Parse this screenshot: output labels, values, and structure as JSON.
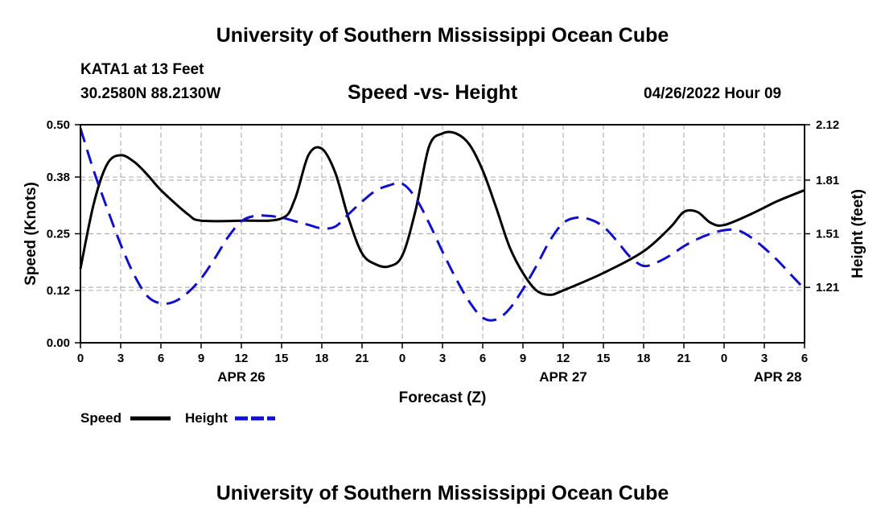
{
  "header": {
    "title": "University of Southern Mississippi Ocean Cube",
    "station": "KATA1 at 13 Feet",
    "coordinates": "30.2580N  88.2130W",
    "chart_title": "Speed -vs- Height",
    "datestamp": "04/26/2022 Hour 09"
  },
  "footer": {
    "title": "University of Southern Mississippi Ocean Cube"
  },
  "colors": {
    "speed": "#000000",
    "height": "#1010cc",
    "grid": "#b4b4b4"
  },
  "chart_data": {
    "type": "line",
    "title": "Speed -vs- Height",
    "xlabel": "Forecast (Z)",
    "ylabel": "Speed (Knots)",
    "y2label": "Height (feet)",
    "x_range": [
      0,
      54
    ],
    "x_tick_values": [
      0,
      3,
      6,
      9,
      12,
      15,
      18,
      21,
      24,
      27,
      30,
      33,
      36,
      39,
      42,
      45,
      48,
      51,
      54
    ],
    "x_tick_labels": [
      "0",
      "3",
      "6",
      "9",
      "12",
      "15",
      "18",
      "21",
      "0",
      "3",
      "6",
      "9",
      "12",
      "15",
      "18",
      "21",
      "0",
      "3",
      "6"
    ],
    "date_labels": [
      {
        "x": 12,
        "label": "APR 26"
      },
      {
        "x": 36,
        "label": "APR 27"
      },
      {
        "x": 52,
        "label": "APR 28"
      }
    ],
    "ylim": [
      0,
      0.5
    ],
    "y_ticks": [
      0.0,
      0.12,
      0.25,
      0.38,
      0.5
    ],
    "y_tick_labels": [
      "0.00",
      "0.12",
      "0.25",
      "0.38",
      "0.50"
    ],
    "y2lim": [
      0.9,
      2.12
    ],
    "y2_ticks": [
      1.21,
      1.51,
      1.81,
      2.12
    ],
    "y2_tick_labels": [
      "1.21",
      "1.51",
      "1.81",
      "2.12"
    ],
    "grid": true,
    "legend_position": "bottom-left",
    "series": [
      {
        "name": "Speed",
        "axis": "left",
        "style": "solid",
        "x": [
          0,
          1,
          2,
          3,
          4,
          5,
          6,
          8,
          9,
          12,
          15,
          16,
          17,
          18,
          19,
          20,
          21,
          22,
          23,
          24,
          25,
          26,
          27,
          28,
          29,
          30,
          31,
          32,
          33,
          34,
          35,
          36,
          39,
          42,
          44,
          45,
          46,
          47,
          48,
          50,
          52,
          54
        ],
        "values": [
          0.17,
          0.32,
          0.41,
          0.43,
          0.415,
          0.385,
          0.35,
          0.295,
          0.28,
          0.28,
          0.285,
          0.33,
          0.43,
          0.445,
          0.39,
          0.285,
          0.205,
          0.18,
          0.175,
          0.2,
          0.305,
          0.45,
          0.48,
          0.48,
          0.455,
          0.395,
          0.31,
          0.22,
          0.16,
          0.12,
          0.11,
          0.12,
          0.16,
          0.21,
          0.265,
          0.3,
          0.3,
          0.275,
          0.27,
          0.295,
          0.325,
          0.35
        ]
      },
      {
        "name": "Height",
        "axis": "right",
        "style": "dashed",
        "x": [
          0,
          1,
          2,
          3,
          4,
          5,
          6,
          7,
          8,
          9,
          10,
          11,
          12,
          13,
          14,
          15,
          16,
          17,
          18,
          19,
          20,
          21,
          22,
          23,
          24,
          25,
          26,
          27,
          28,
          29,
          30,
          31,
          32,
          33,
          34,
          35,
          36,
          37,
          38,
          39,
          40,
          41,
          42,
          43,
          44,
          45,
          46,
          47,
          48,
          49,
          50,
          51,
          52,
          53,
          54
        ],
        "values": [
          2.1,
          1.86,
          1.65,
          1.45,
          1.28,
          1.16,
          1.12,
          1.13,
          1.18,
          1.26,
          1.37,
          1.49,
          1.58,
          1.61,
          1.61,
          1.6,
          1.58,
          1.56,
          1.54,
          1.55,
          1.62,
          1.69,
          1.75,
          1.78,
          1.79,
          1.71,
          1.57,
          1.41,
          1.26,
          1.13,
          1.04,
          1.03,
          1.09,
          1.2,
          1.33,
          1.47,
          1.57,
          1.6,
          1.59,
          1.55,
          1.47,
          1.38,
          1.33,
          1.35,
          1.39,
          1.44,
          1.48,
          1.51,
          1.53,
          1.53,
          1.49,
          1.43,
          1.36,
          1.28,
          1.2
        ]
      }
    ]
  }
}
